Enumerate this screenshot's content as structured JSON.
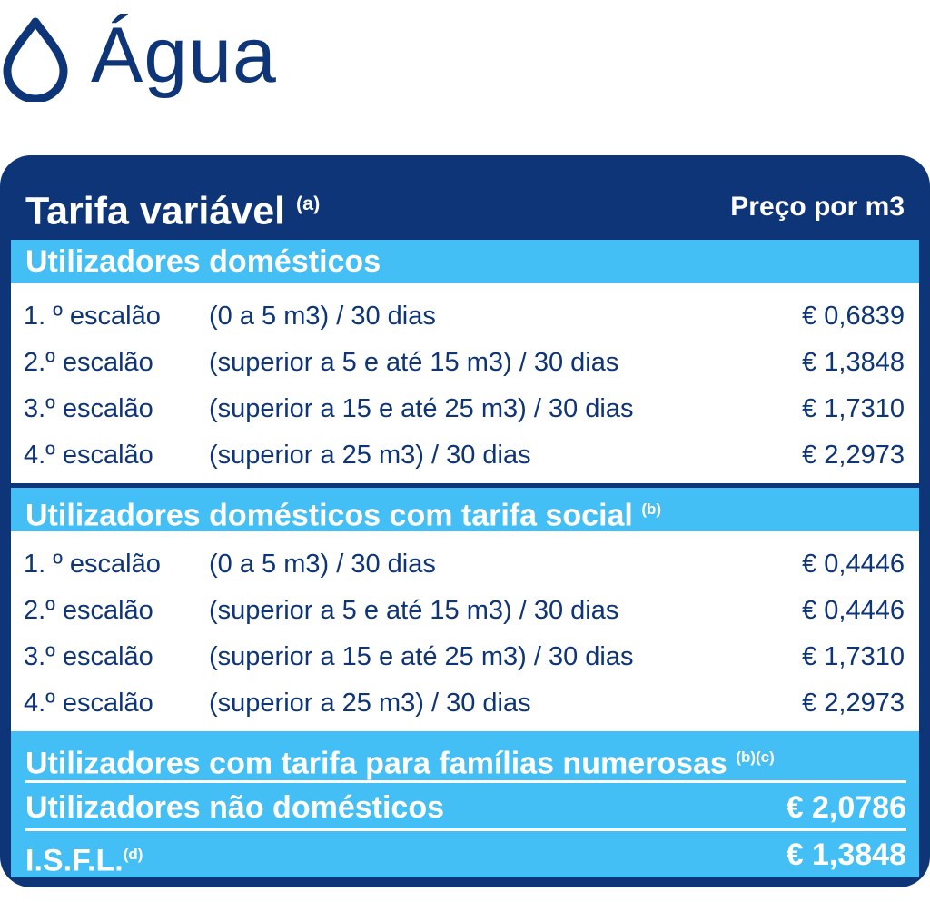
{
  "brand": {
    "title": "Água",
    "icon": "water-drop-icon"
  },
  "card": {
    "title": "Tarifa variável",
    "title_note": "(a)",
    "price_header": "Preço por m3"
  },
  "domestic": {
    "title": "Utilizadores domésticos",
    "rows": [
      {
        "tier": "1. º escalão",
        "range": "(0 a 5 m3) / 30 dias",
        "price": "€ 0,6839"
      },
      {
        "tier": "2.º escalão",
        "range": "(superior a 5 e até 15 m3) / 30 dias",
        "price": "€ 1,3848"
      },
      {
        "tier": "3.º escalão",
        "range": "(superior a 15 e até 25 m3) / 30 dias",
        "price": "€ 1,7310"
      },
      {
        "tier": "4.º escalão",
        "range": "(superior a 25 m3) / 30 dias",
        "price": "€ 2,2973"
      }
    ]
  },
  "social": {
    "title": "Utilizadores domésticos com tarifa social",
    "note": "(b)",
    "rows": [
      {
        "tier": "1. º escalão",
        "range": "(0 a 5 m3) / 30 dias",
        "price": "€ 0,4446"
      },
      {
        "tier": "2.º escalão",
        "range": "(superior a 5 e até 15 m3) / 30 dias",
        "price": "€ 0,4446"
      },
      {
        "tier": "3.º escalão",
        "range": "(superior a 15 e até 25 m3) / 30 dias",
        "price": "€ 1,7310"
      },
      {
        "tier": "4.º escalão",
        "range": "(superior a 25 m3) / 30 dias",
        "price": "€ 2,2973"
      }
    ]
  },
  "large_families": {
    "label": "Utilizadores com tarifa para famílias numerosas",
    "note": "(b)(c)"
  },
  "non_domestic": {
    "label": "Utilizadores não domésticos",
    "price": "€ 2,0786"
  },
  "isfl": {
    "label": "I.S.F.L.",
    "note": "(d)",
    "price": "€ 1,3848"
  },
  "colors": {
    "navy": "#0d3578",
    "sky": "#44bff5",
    "white": "#ffffff"
  }
}
